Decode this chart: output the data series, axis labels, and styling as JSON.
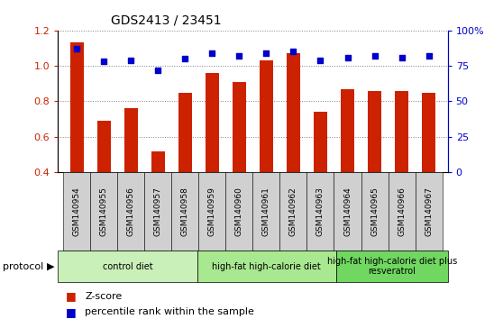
{
  "title": "GDS2413 / 23451",
  "samples": [
    "GSM140954",
    "GSM140955",
    "GSM140956",
    "GSM140957",
    "GSM140958",
    "GSM140959",
    "GSM140960",
    "GSM140961",
    "GSM140962",
    "GSM140963",
    "GSM140964",
    "GSM140965",
    "GSM140966",
    "GSM140967"
  ],
  "zscore": [
    1.13,
    0.69,
    0.76,
    0.52,
    0.85,
    0.96,
    0.91,
    1.03,
    1.07,
    0.74,
    0.87,
    0.86,
    0.86,
    0.85
  ],
  "percentile": [
    87,
    78,
    79,
    72,
    80,
    84,
    82,
    84,
    85,
    79,
    81,
    82,
    81,
    82
  ],
  "bar_color": "#cc2200",
  "dot_color": "#0000cc",
  "ylim_left": [
    0.4,
    1.2
  ],
  "ylim_right": [
    0,
    100
  ],
  "yticks_left": [
    0.4,
    0.6,
    0.8,
    1.0,
    1.2
  ],
  "yticks_right": [
    0,
    25,
    50,
    75,
    100
  ],
  "ytick_labels_right": [
    "0",
    "25",
    "50",
    "75",
    "100%"
  ],
  "grid_y": [
    0.4,
    0.6,
    0.8,
    1.0,
    1.2
  ],
  "protocols": [
    {
      "label": "control diet",
      "start": 0,
      "end": 5,
      "color": "#c8f0b8"
    },
    {
      "label": "high-fat high-calorie diet",
      "start": 5,
      "end": 10,
      "color": "#a8e890"
    },
    {
      "label": "high-fat high-calorie diet plus\nresveratrol",
      "start": 10,
      "end": 14,
      "color": "#70d860"
    }
  ],
  "legend_items": [
    {
      "label": "Z-score",
      "color": "#cc2200"
    },
    {
      "label": "percentile rank within the sample",
      "color": "#0000cc"
    }
  ],
  "protocol_label": "protocol",
  "bar_width": 0.5,
  "tick_bg_color": "#d0d0d0",
  "figsize": [
    5.58,
    3.54
  ],
  "dpi": 100
}
